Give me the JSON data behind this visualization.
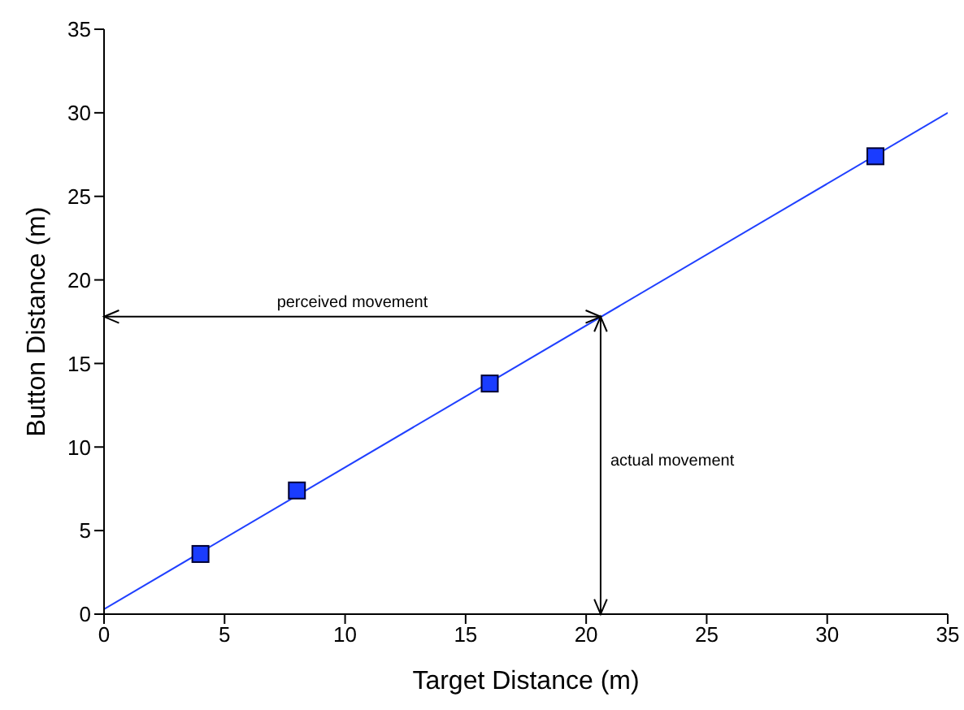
{
  "chart_data": {
    "type": "scatter",
    "xlabel": "Target Distance (m)",
    "ylabel": "Button Distance (m)",
    "xlim": [
      0,
      35
    ],
    "xticks": [
      0,
      5,
      10,
      15,
      20,
      25,
      30,
      35
    ],
    "ylim": [
      0,
      35
    ],
    "yticks": [
      0,
      5,
      10,
      15,
      20,
      25,
      30,
      35
    ],
    "grid": false,
    "legend": false,
    "series": [
      {
        "color": "#1a3cff",
        "marker": "square",
        "x": [
          4,
          8,
          16,
          32
        ],
        "values": [
          3.6,
          7.4,
          13.8,
          27.4
        ]
      },
      {
        "type": "line",
        "color": "#2040ff",
        "marker": "none",
        "line_style": "solid",
        "x": [
          0,
          35
        ],
        "values": [
          0.3,
          30
        ]
      }
    ],
    "ref_lines": [
      {
        "axis": "y",
        "value": 17.8,
        "label": "perceived movement",
        "color": "#000000"
      },
      {
        "axis": "x",
        "value": 20.6,
        "label": "actual movement",
        "color": "#000000"
      }
    ]
  }
}
